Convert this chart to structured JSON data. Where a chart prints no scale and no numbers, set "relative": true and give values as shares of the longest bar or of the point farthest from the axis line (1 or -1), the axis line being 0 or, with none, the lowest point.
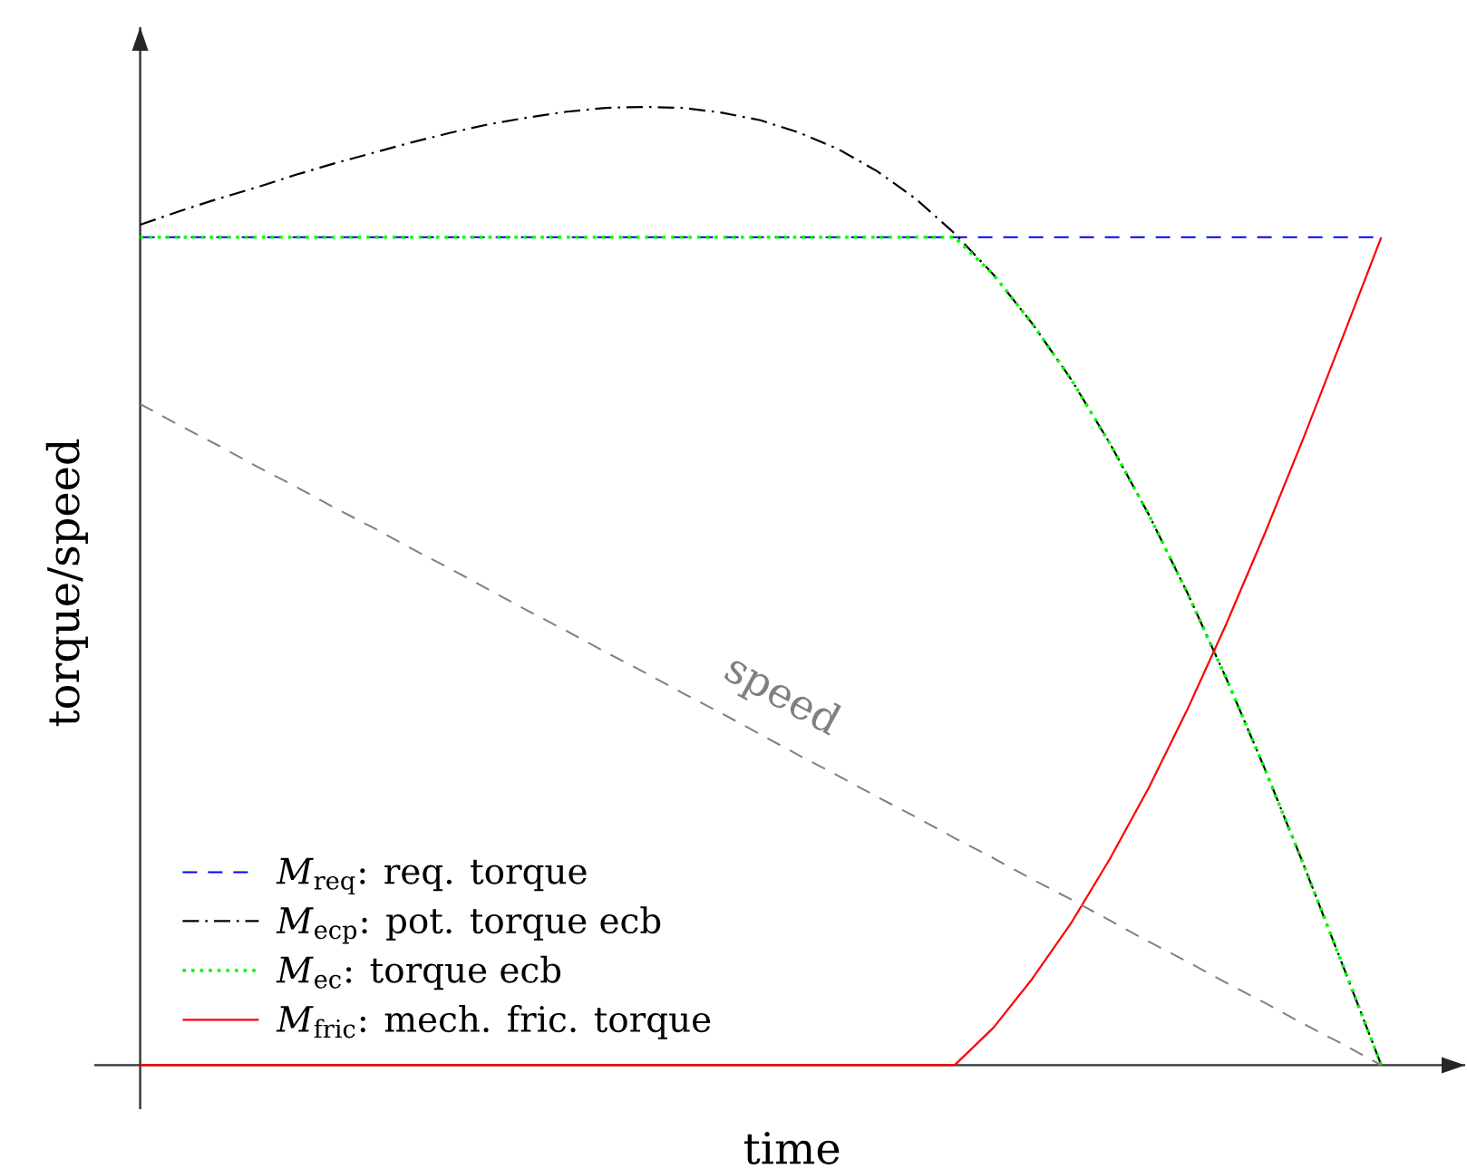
{
  "chart_data": {
    "type": "line",
    "relative": true,
    "xlabel": "time",
    "ylabel": "torque/speed",
    "legend": "bottom left",
    "categories": [
      null,
      null,
      null,
      null,
      null,
      null,
      null,
      null,
      null,
      null,
      null,
      null,
      null,
      null,
      null,
      null,
      null,
      null,
      null,
      null,
      null,
      null,
      null,
      null,
      null,
      null,
      null,
      null,
      null,
      null,
      null,
      null,
      null
    ],
    "series": [
      {
        "name": "*M*$_{req}$: req. torque",
        "color": "#0000ff",
        "line_style": "dashed",
        "values": [
          0.864,
          0.864,
          0.864,
          0.864,
          0.864,
          0.864,
          0.864,
          0.864,
          0.864,
          0.864,
          0.864,
          0.864,
          0.864,
          0.864,
          0.864,
          0.864,
          0.864,
          0.864,
          0.864,
          0.864,
          0.864,
          0.864,
          0.864,
          0.864,
          0.864,
          0.864,
          0.864,
          0.864,
          0.864,
          0.864,
          0.864,
          0.864,
          0.864
        ]
      },
      {
        "name": "*M*$_{ecp}$: pot. torque ecb",
        "color": "#000000",
        "line_style": "dashdot",
        "values": [
          0.877,
          0.891,
          0.904,
          0.916,
          0.929,
          0.941,
          0.952,
          0.963,
          0.973,
          0.982,
          0.989,
          0.995,
          0.999,
          1.0,
          0.999,
          0.994,
          0.986,
          0.973,
          0.956,
          0.933,
          0.904,
          0.868,
          0.825,
          0.774,
          0.716,
          0.649,
          0.575,
          0.493,
          0.404,
          0.309,
          0.209,
          0.105,
          0
        ]
      },
      {
        "name": "*M*$_{ec}$: torque ecb",
        "color": "#00ff00",
        "line_style": "dotted",
        "values": [
          0.864,
          0.864,
          0.864,
          0.864,
          0.864,
          0.864,
          0.864,
          0.864,
          0.864,
          0.864,
          0.864,
          0.864,
          0.864,
          0.864,
          0.864,
          0.864,
          0.864,
          0.864,
          0.864,
          0.864,
          0.864,
          0.864,
          0.825,
          0.774,
          0.716,
          0.649,
          0.575,
          0.493,
          0.404,
          0.309,
          0.209,
          0.105,
          0
        ]
      },
      {
        "name": "*M*$_{fric}$: mech. fric. torque",
        "color": "#ff0000",
        "line_style": "solid",
        "values": [
          0,
          0,
          0,
          0,
          0,
          0,
          0,
          0,
          0,
          0,
          0,
          0,
          0,
          0,
          0,
          0,
          0,
          0,
          0,
          0,
          0,
          0,
          0.039,
          0.09,
          0.148,
          0.215,
          0.289,
          0.371,
          0.46,
          0.555,
          0.655,
          0.759,
          0.864
        ]
      },
      {
        "name": "speed",
        "color": "#808080",
        "line_style": "dashed",
        "values": [
          0.69,
          0.668,
          0.647,
          0.625,
          0.604,
          0.582,
          0.561,
          0.539,
          0.518,
          0.496,
          0.474,
          0.453,
          0.431,
          0.41,
          0.388,
          0.367,
          0.345,
          0.323,
          0.302,
          0.28,
          0.259,
          0.237,
          0.216,
          0.194,
          0.173,
          0.151,
          0.129,
          0.108,
          0.086,
          0.065,
          0.043,
          0.022,
          0
        ]
      }
    ]
  }
}
